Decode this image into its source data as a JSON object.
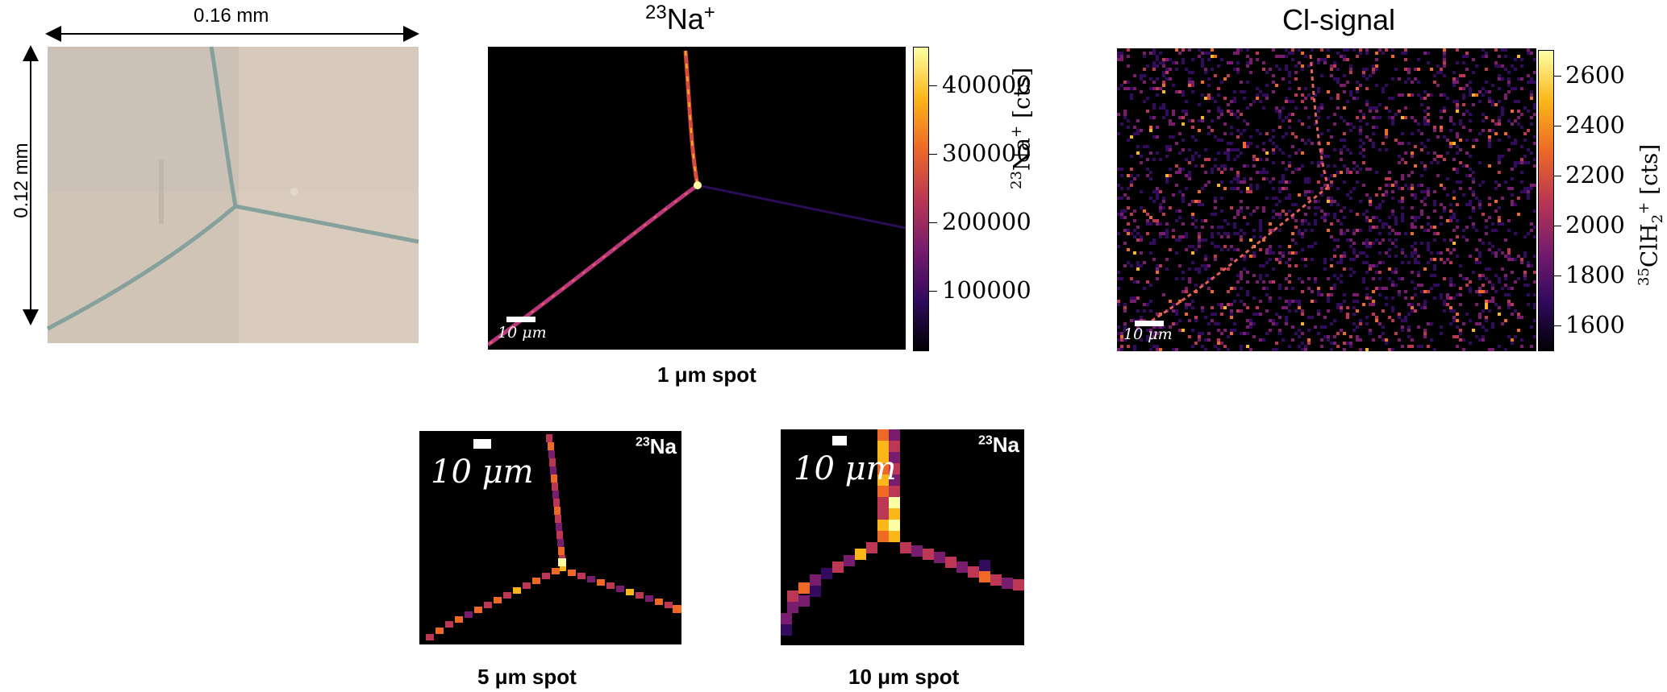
{
  "photo": {
    "width_label": "0.16 mm",
    "height_label": "0.12 mm"
  },
  "na_map": {
    "title_sup": "23",
    "title_main": "Na",
    "title_charge": "+",
    "scale_label": "10 μm",
    "caption": "1 μm spot",
    "colorbar": {
      "ticks": [
        "400000",
        "300000",
        "200000",
        "100000"
      ],
      "label_sup": "23",
      "label_main": "Na",
      "label_charge": "+",
      "label_unit": "[cts]"
    }
  },
  "cl_map": {
    "title": "Cl-signal",
    "scale_label": "10 μm",
    "colorbar": {
      "ticks": [
        "2600",
        "2400",
        "2200",
        "2000",
        "1800",
        "1600"
      ],
      "label_sup": "35",
      "label_main": "ClH",
      "label_sub": "2",
      "label_charge": "+",
      "label_unit": "[cts]"
    }
  },
  "spot5": {
    "scale_label": "10 μm",
    "corner_sup": "23",
    "corner_main": "Na",
    "caption": "5 μm spot"
  },
  "spot10": {
    "scale_label": "10 μm",
    "corner_sup": "23",
    "corner_main": "Na",
    "caption": "10 μm spot"
  },
  "colors": {
    "cmap": [
      "#000004",
      "#320a5e",
      "#781c6d",
      "#bb3754",
      "#ed6925",
      "#fbb61a",
      "#fcffa4"
    ],
    "photo_bg": "#cfc4b8",
    "boundary": "#7f9a98"
  }
}
